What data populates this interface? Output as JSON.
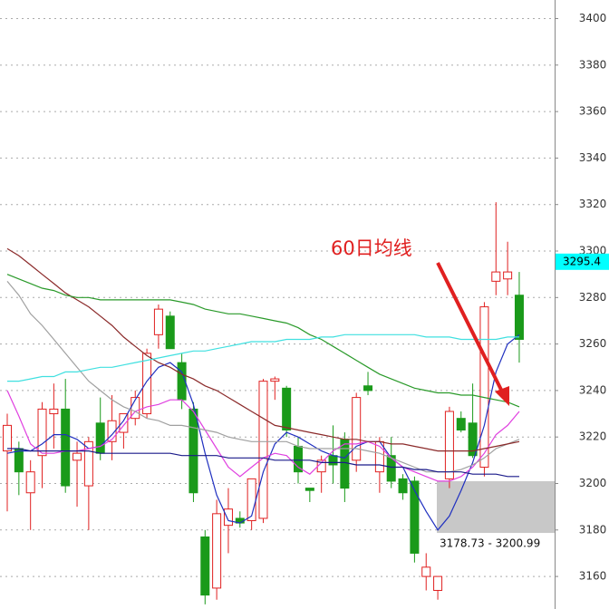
{
  "chart_data": {
    "type": "candlestick",
    "ylim": [
      3146,
      3408
    ],
    "yticks": [
      3160,
      3180,
      3200,
      3220,
      3240,
      3260,
      3280,
      3300,
      3320,
      3340,
      3360,
      3380,
      3400
    ],
    "grid": true,
    "up_color": "#e02020",
    "down_color": "#1a9a1a",
    "ohlc": [
      [
        3214,
        3230,
        3188,
        3225
      ],
      [
        3215,
        3218,
        3195,
        3205
      ],
      [
        3196,
        3210,
        3180,
        3205
      ],
      [
        3212,
        3235,
        3198,
        3232
      ],
      [
        3230,
        3243,
        3215,
        3232
      ],
      [
        3232,
        3245,
        3196,
        3199
      ],
      [
        3210,
        3218,
        3190,
        3213
      ],
      [
        3199,
        3220,
        3180,
        3218
      ],
      [
        3226,
        3237,
        3210,
        3213
      ],
      [
        3218,
        3238,
        3210,
        3227
      ],
      [
        3222,
        3230,
        3215,
        3230
      ],
      [
        3228,
        3240,
        3225,
        3237
      ],
      [
        3230,
        3258,
        3228,
        3256
      ],
      [
        3264,
        3277,
        3258,
        3275
      ],
      [
        3272,
        3274,
        3258,
        3258
      ],
      [
        3252,
        3256,
        3232,
        3236
      ],
      [
        3232,
        3235,
        3192,
        3196
      ],
      [
        3177,
        3180,
        3148,
        3152
      ],
      [
        3155,
        3193,
        3150,
        3187
      ],
      [
        3182,
        3198,
        3170,
        3189
      ],
      [
        3185,
        3188,
        3181,
        3183
      ],
      [
        3184,
        3202,
        3180,
        3202
      ],
      [
        3185,
        3245,
        3183,
        3244
      ],
      [
        3244,
        3246,
        3236,
        3245
      ],
      [
        3241,
        3242,
        3220,
        3223
      ],
      [
        3216,
        3220,
        3200,
        3205
      ],
      [
        3198,
        3198,
        3192,
        3197
      ],
      [
        3205,
        3212,
        3196,
        3210
      ],
      [
        3212,
        3225,
        3200,
        3208
      ],
      [
        3219,
        3222,
        3192,
        3198
      ],
      [
        3210,
        3239,
        3205,
        3237
      ],
      [
        3242,
        3248,
        3238,
        3240
      ],
      [
        3205,
        3220,
        3196,
        3218
      ],
      [
        3212,
        3220,
        3198,
        3201
      ],
      [
        3202,
        3204,
        3193,
        3196
      ],
      [
        3201,
        3203,
        3166,
        3170
      ],
      [
        3160,
        3170,
        3154,
        3164
      ],
      [
        3154,
        3160,
        3150,
        3160
      ],
      [
        3202,
        3233,
        3198,
        3231
      ],
      [
        3228,
        3231,
        3222,
        3223
      ],
      [
        3226,
        3243,
        3211,
        3212
      ],
      [
        3207,
        3278,
        3203,
        3276
      ],
      [
        3287,
        3321,
        3281,
        3291
      ],
      [
        3288,
        3304,
        3281,
        3291
      ],
      [
        3281,
        3291,
        3252,
        3262
      ]
    ],
    "series": [
      {
        "color": "#2030c0",
        "values": [
          3213,
          3214,
          3214,
          3217,
          3221,
          3221,
          3219,
          3215,
          3216,
          3221,
          3227,
          3236,
          3244,
          3250,
          3252,
          3248,
          3234,
          3213,
          3195,
          3184,
          3183,
          3186,
          3205,
          3217,
          3222,
          3220,
          3217,
          3214,
          3212,
          3211,
          3216,
          3218,
          3218,
          3211,
          3207,
          3197,
          3188,
          3180,
          3186,
          3197,
          3209,
          3225,
          3248,
          3260,
          3264
        ]
      },
      {
        "color": "#e040e0",
        "values": [
          3240,
          3229,
          3217,
          3213,
          3213,
          3214,
          3214,
          3215,
          3216,
          3219,
          3225,
          3231,
          3233,
          3234,
          3236,
          3236,
          3231,
          3223,
          3215,
          3207,
          3203,
          3207,
          3211,
          3213,
          3212,
          3207,
          3204,
          3209,
          3214,
          3217,
          3217,
          3218,
          3216,
          3211,
          3207,
          3205,
          3203,
          3201,
          3201,
          3203,
          3207,
          3213,
          3221,
          3225,
          3231
        ]
      },
      {
        "color": "#a0a0a0",
        "values": [
          3287,
          3281,
          3273,
          3268,
          3262,
          3256,
          3250,
          3244,
          3240,
          3236,
          3233,
          3231,
          3228,
          3227,
          3225,
          3225,
          3224,
          3223,
          3222,
          3220,
          3219,
          3218,
          3218,
          3218,
          3218,
          3216,
          3215,
          3215,
          3215,
          3215,
          3215,
          3214,
          3213,
          3211,
          3209,
          3207,
          3205,
          3205,
          3205,
          3206,
          3208,
          3211,
          3215,
          3217,
          3219
        ]
      },
      {
        "color": "#8b2a2a",
        "values": [
          3301,
          3298,
          3294,
          3290,
          3286,
          3282,
          3279,
          3276,
          3272,
          3268,
          3263,
          3259,
          3255,
          3252,
          3250,
          3247,
          3245,
          3242,
          3240,
          3237,
          3234,
          3231,
          3228,
          3225,
          3224,
          3223,
          3222,
          3221,
          3220,
          3219,
          3219,
          3218,
          3218,
          3217,
          3217,
          3216,
          3215,
          3214,
          3214,
          3214,
          3214,
          3215,
          3216,
          3217,
          3218
        ]
      },
      {
        "color": "#2a9a2a",
        "values": [
          3290,
          3288,
          3286,
          3284,
          3283,
          3281,
          3280,
          3280,
          3279,
          3279,
          3279,
          3279,
          3279,
          3279,
          3279,
          3278,
          3277,
          3275,
          3274,
          3273,
          3273,
          3272,
          3271,
          3270,
          3269,
          3267,
          3264,
          3262,
          3259,
          3256,
          3253,
          3250,
          3247,
          3245,
          3243,
          3241,
          3240,
          3239,
          3239,
          3238,
          3238,
          3237,
          3236,
          3235,
          3233
        ]
      },
      {
        "color": "#40e0e0",
        "values": [
          3244,
          3244,
          3245,
          3246,
          3246,
          3248,
          3248,
          3249,
          3250,
          3250,
          3251,
          3252,
          3253,
          3254,
          3255,
          3256,
          3257,
          3257,
          3258,
          3259,
          3260,
          3261,
          3261,
          3261,
          3262,
          3262,
          3262,
          3263,
          3263,
          3264,
          3264,
          3264,
          3264,
          3264,
          3264,
          3264,
          3263,
          3263,
          3263,
          3262,
          3262,
          3262,
          3262,
          3263,
          3263
        ]
      },
      {
        "color": "#1a1a8a",
        "values": [
          3215,
          3215,
          3214,
          3214,
          3214,
          3214,
          3214,
          3214,
          3213,
          3213,
          3213,
          3213,
          3213,
          3213,
          3213,
          3212,
          3212,
          3212,
          3212,
          3211,
          3211,
          3211,
          3211,
          3210,
          3210,
          3210,
          3210,
          3209,
          3209,
          3209,
          3208,
          3208,
          3208,
          3207,
          3207,
          3206,
          3206,
          3205,
          3205,
          3205,
          3204,
          3204,
          3204,
          3203,
          3203
        ]
      }
    ],
    "annotation": "60日均线",
    "price_label": 3295.4,
    "range_box": {
      "values": [
        3178.73,
        3200.99
      ],
      "label": "3178.73 - 3200.99"
    }
  }
}
